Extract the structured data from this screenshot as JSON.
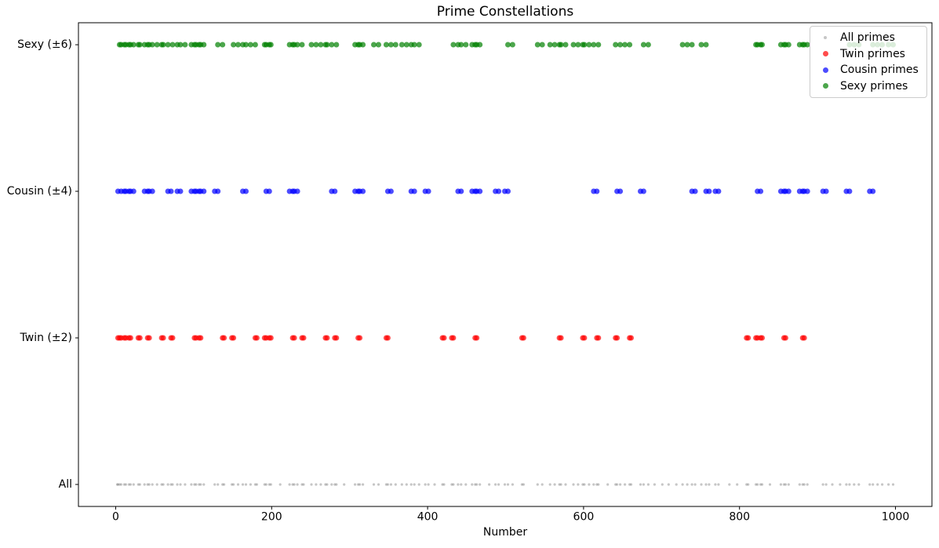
{
  "chart_data": {
    "type": "scatter",
    "title": "Prime Constellations",
    "xlabel": "Number",
    "ylabel": "",
    "grid": false,
    "legend_position": "upper right",
    "axes": {
      "xlim": [
        -47.75,
        1046.75
      ],
      "xticks": [
        0,
        200,
        400,
        600,
        800,
        1000
      ]
    },
    "rows": [
      {
        "label": "All"
      },
      {
        "label": "Twin (±2)"
      },
      {
        "label": "Cousin (±4)"
      },
      {
        "label": "Sexy (±6)"
      }
    ],
    "series": [
      {
        "name": "All primes",
        "row": 0,
        "color": "#808080",
        "opacity": 0.45,
        "radius": 1.6,
        "legend_marker_px": 4,
        "values": [
          2,
          3,
          5,
          7,
          11,
          13,
          17,
          19,
          23,
          29,
          31,
          37,
          41,
          43,
          47,
          53,
          59,
          61,
          67,
          71,
          73,
          79,
          83,
          89,
          97,
          101,
          103,
          107,
          109,
          113,
          127,
          131,
          137,
          139,
          149,
          151,
          157,
          163,
          167,
          173,
          179,
          181,
          191,
          193,
          197,
          199,
          211,
          223,
          227,
          229,
          233,
          239,
          241,
          251,
          257,
          263,
          269,
          271,
          277,
          281,
          283,
          293,
          307,
          311,
          313,
          317,
          331,
          337,
          347,
          349,
          353,
          359,
          367,
          373,
          379,
          383,
          389,
          397,
          401,
          409,
          419,
          421,
          431,
          433,
          439,
          443,
          449,
          457,
          461,
          463,
          467,
          479,
          487,
          491,
          499,
          503,
          509,
          521,
          523,
          541,
          547,
          557,
          563,
          569,
          571,
          577,
          587,
          593,
          599,
          601,
          607,
          613,
          617,
          619,
          631,
          641,
          643,
          647,
          653,
          659,
          661,
          673,
          677,
          683,
          691,
          701,
          709,
          719,
          727,
          733,
          739,
          743,
          751,
          757,
          761,
          769,
          773,
          787,
          797,
          809,
          811,
          821,
          823,
          827,
          829,
          839,
          853,
          857,
          859,
          863,
          877,
          881,
          883,
          887,
          907,
          911,
          919,
          929,
          937,
          941,
          947,
          953,
          967,
          971,
          977,
          983,
          991,
          997
        ]
      },
      {
        "name": "Twin primes",
        "row": 1,
        "color": "#ff0000",
        "opacity": 0.7,
        "radius": 3.5,
        "legend_marker_px": 7,
        "values": [
          3,
          5,
          7,
          11,
          13,
          17,
          19,
          29,
          31,
          41,
          43,
          59,
          61,
          71,
          73,
          101,
          103,
          107,
          109,
          137,
          139,
          149,
          151,
          179,
          181,
          191,
          193,
          197,
          199,
          227,
          229,
          239,
          241,
          269,
          271,
          281,
          283,
          311,
          313,
          347,
          349,
          419,
          421,
          431,
          433,
          461,
          463,
          521,
          523,
          569,
          571,
          599,
          601,
          617,
          619,
          641,
          643,
          659,
          661,
          809,
          811,
          821,
          823,
          827,
          829,
          857,
          859,
          881,
          883
        ]
      },
      {
        "name": "Cousin primes",
        "row": 2,
        "color": "#0000ff",
        "opacity": 0.7,
        "radius": 3.5,
        "legend_marker_px": 7,
        "values": [
          3,
          7,
          11,
          13,
          17,
          19,
          23,
          37,
          41,
          43,
          47,
          67,
          71,
          79,
          83,
          97,
          101,
          103,
          107,
          109,
          113,
          127,
          131,
          163,
          167,
          193,
          197,
          223,
          227,
          229,
          233,
          277,
          281,
          307,
          311,
          313,
          317,
          349,
          353,
          379,
          383,
          397,
          401,
          439,
          443,
          457,
          461,
          463,
          467,
          487,
          491,
          499,
          503,
          613,
          617,
          643,
          647,
          673,
          677,
          739,
          743,
          757,
          761,
          769,
          773,
          823,
          827,
          853,
          857,
          859,
          863,
          877,
          881,
          883,
          887,
          907,
          911,
          937,
          941,
          967,
          971
        ]
      },
      {
        "name": "Sexy primes",
        "row": 3,
        "color": "#008000",
        "opacity": 0.7,
        "radius": 3.5,
        "legend_marker_px": 7,
        "values": [
          5,
          7,
          11,
          13,
          17,
          19,
          23,
          29,
          31,
          37,
          41,
          43,
          47,
          53,
          59,
          61,
          67,
          73,
          79,
          83,
          89,
          97,
          101,
          103,
          107,
          109,
          113,
          131,
          137,
          151,
          157,
          163,
          167,
          173,
          179,
          191,
          193,
          197,
          199,
          223,
          227,
          229,
          233,
          239,
          251,
          257,
          263,
          269,
          271,
          277,
          283,
          307,
          311,
          313,
          317,
          331,
          337,
          347,
          353,
          359,
          367,
          373,
          379,
          383,
          389,
          433,
          439,
          443,
          449,
          457,
          461,
          463,
          467,
          503,
          509,
          541,
          547,
          557,
          563,
          569,
          571,
          577,
          587,
          593,
          599,
          601,
          607,
          613,
          619,
          641,
          647,
          653,
          659,
          677,
          683,
          727,
          733,
          739,
          751,
          757,
          821,
          823,
          827,
          829,
          853,
          857,
          859,
          863,
          877,
          881,
          883,
          887,
          941,
          947,
          953,
          971,
          977,
          983,
          991,
          997
        ]
      }
    ]
  }
}
